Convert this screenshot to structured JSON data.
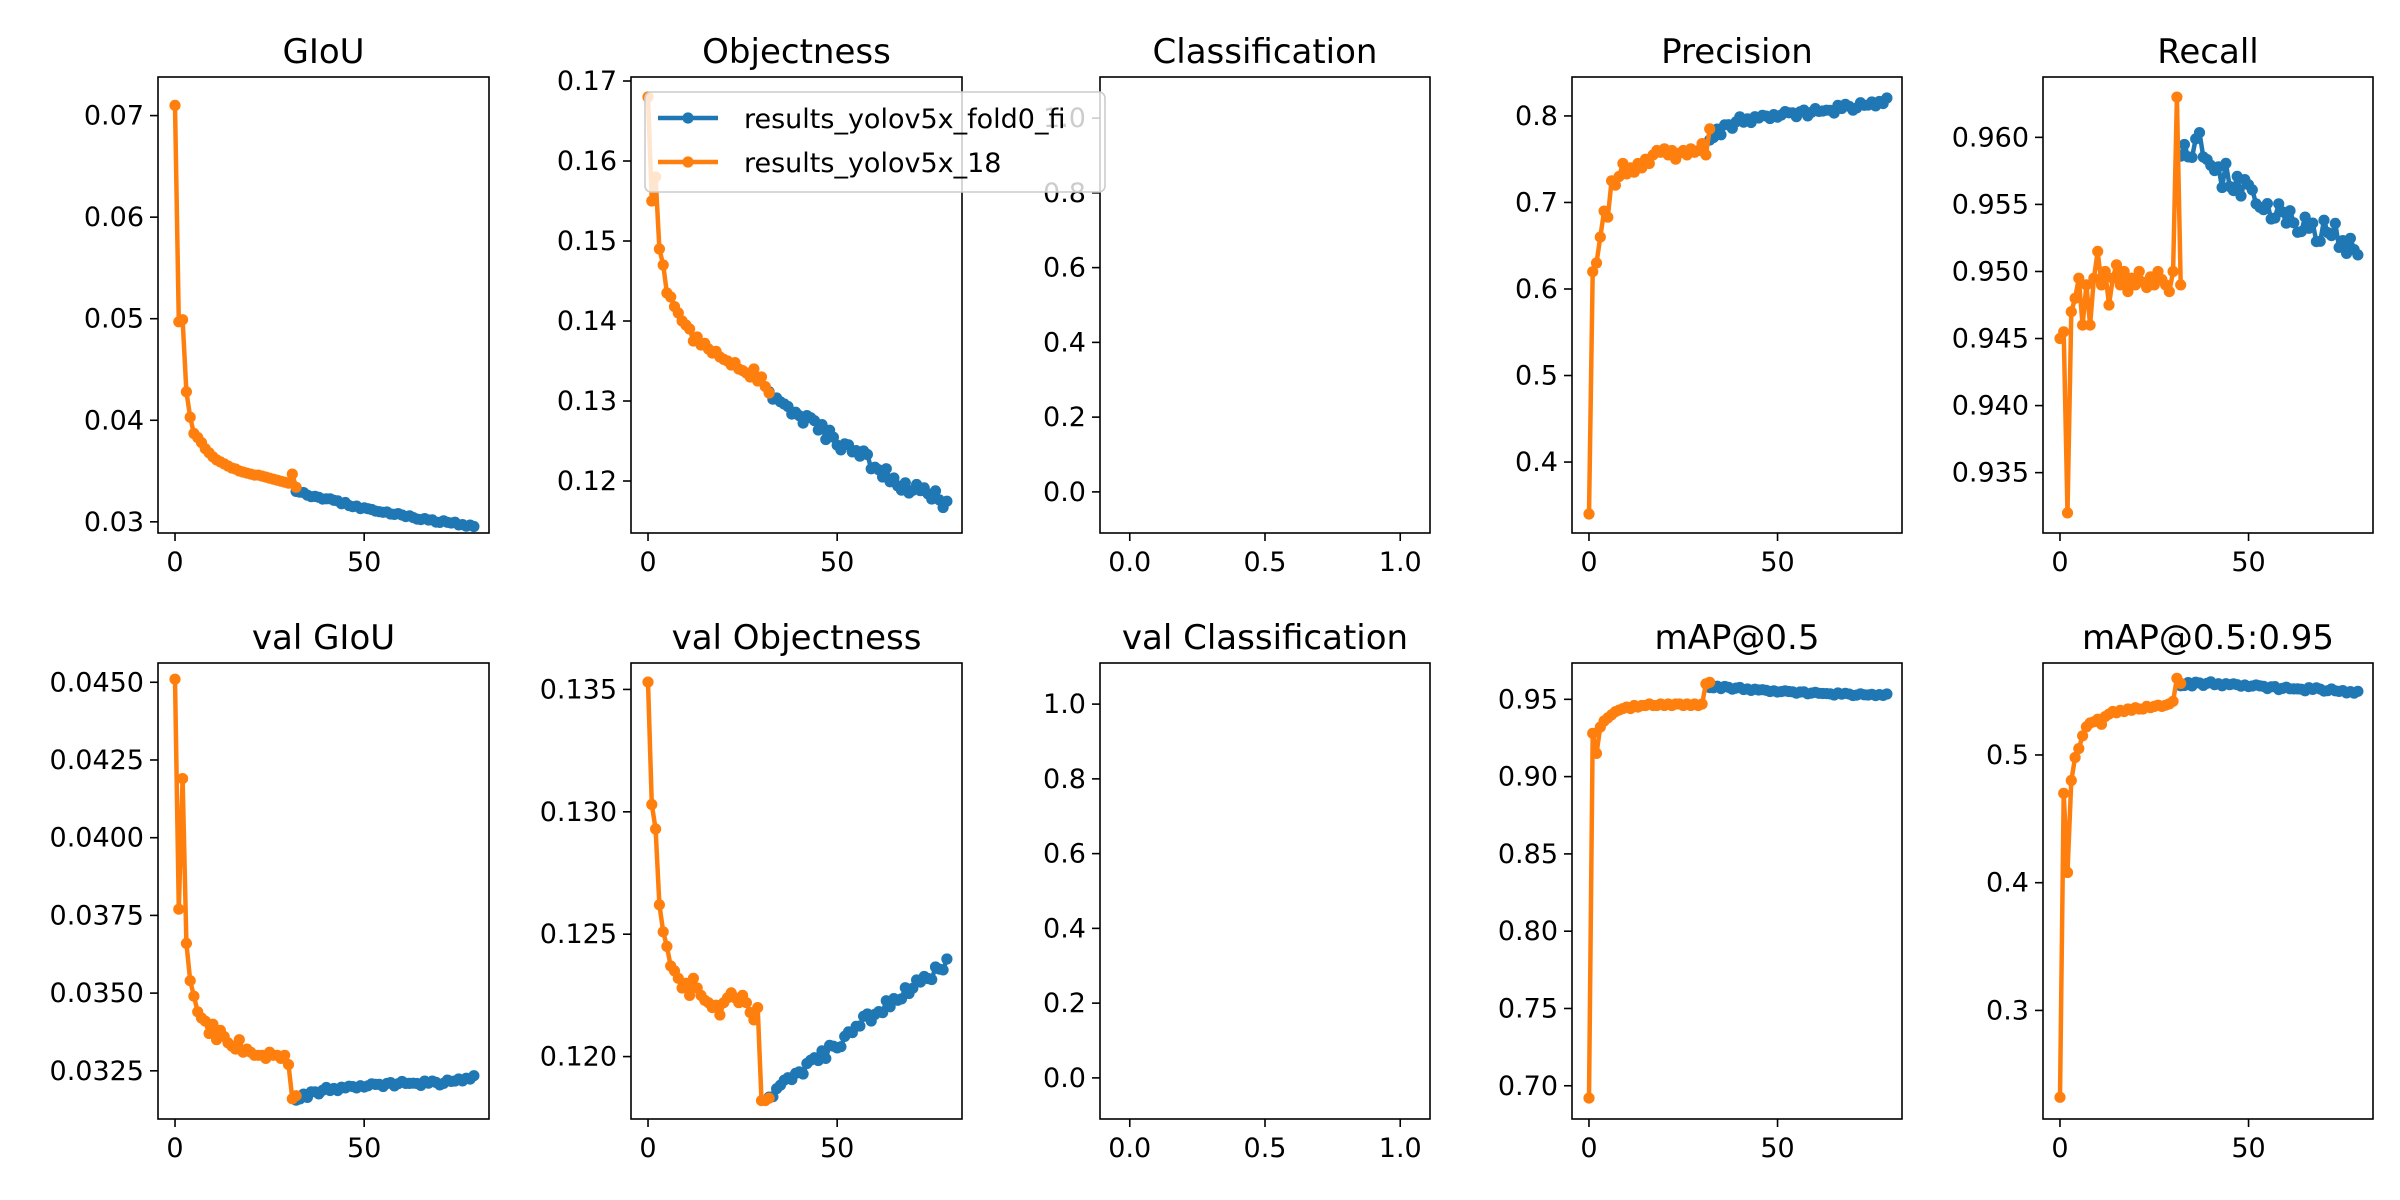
{
  "colors": {
    "series1": "#1f77b4",
    "series2": "#ff7f0e",
    "axis": "#000000",
    "legend_border": "#cccccc"
  },
  "legend": {
    "placement": "upper-right",
    "entries": [
      "results_yolov5x_fold0_fi",
      "results_yolov5x_18"
    ]
  },
  "chart_data": [
    {
      "type": "line",
      "title": "GIoU",
      "xlim": [
        -4.5,
        83
      ],
      "ylim": [
        0.0289,
        0.0738
      ],
      "xticks": [
        0,
        50
      ],
      "xticklabels": [
        "0",
        "50"
      ],
      "yticks": [
        0.03,
        0.04,
        0.05,
        0.06,
        0.07
      ],
      "yticklabels": [
        "0.03",
        "0.04",
        "0.05",
        "0.06",
        "0.07"
      ],
      "series": [
        {
          "name": "results_yolov5x_fold0_fi",
          "x_start": 32,
          "x_end": 79,
          "keys": [
            [
              32,
              0.033
            ],
            [
              50,
              0.0313
            ],
            [
              65,
              0.0303
            ],
            [
              79,
              0.0296
            ]
          ],
          "noise": 0.00015
        },
        {
          "name": "results_yolov5x_18",
          "values": [
            0.071,
            0.0497,
            0.0499,
            0.0428,
            0.0403,
            0.0387,
            0.0383,
            0.0378,
            0.0372,
            0.0368,
            0.0364,
            0.0361,
            0.0359,
            0.0357,
            0.0355,
            0.0353,
            0.0352,
            0.035,
            0.0349,
            0.0348,
            0.0347,
            0.0346,
            0.0346,
            0.0345,
            0.0344,
            0.0343,
            0.0342,
            0.0341,
            0.034,
            0.0339,
            0.0338,
            0.0347,
            0.0334
          ]
        }
      ]
    },
    {
      "type": "line",
      "title": "Objectness",
      "xlim": [
        -4.5,
        83
      ],
      "ylim": [
        0.1135,
        0.1705
      ],
      "xticks": [
        0,
        50
      ],
      "xticklabels": [
        "0",
        "50"
      ],
      "yticks": [
        0.12,
        0.13,
        0.14,
        0.15,
        0.16,
        0.17
      ],
      "yticklabels": [
        "0.12",
        "0.13",
        "0.14",
        "0.15",
        "0.16",
        "0.17"
      ],
      "series": [
        {
          "name": "results_yolov5x_fold0_fi",
          "x_start": 32,
          "x_end": 79,
          "keys": [
            [
              32,
              0.131
            ],
            [
              40,
              0.128
            ],
            [
              50,
              0.125
            ],
            [
              60,
              0.122
            ],
            [
              68,
              0.119
            ],
            [
              75,
              0.1185
            ],
            [
              79,
              0.1168
            ]
          ],
          "noise": 0.0009
        },
        {
          "name": "results_yolov5x_18",
          "values": [
            0.168,
            0.155,
            0.158,
            0.149,
            0.147,
            0.1435,
            0.143,
            0.1418,
            0.141,
            0.14,
            0.1395,
            0.139,
            0.1375,
            0.138,
            0.137,
            0.1372,
            0.1365,
            0.136,
            0.1362,
            0.1355,
            0.1352,
            0.135,
            0.1345,
            0.1348,
            0.134,
            0.1338,
            0.1335,
            0.133,
            0.134,
            0.1325,
            0.133,
            0.1318,
            0.131
          ]
        }
      ]
    },
    {
      "type": "line",
      "title": "Classification",
      "xlim": [
        -0.11,
        1.11
      ],
      "ylim": [
        -0.11,
        1.11
      ],
      "xticks": [
        0,
        0.5,
        1
      ],
      "xticklabels": [
        "0.0",
        "0.5",
        "1.0"
      ],
      "yticks": [
        0,
        0.2,
        0.4,
        0.6,
        0.8,
        1.0
      ],
      "yticklabels": [
        "0.0",
        "0.2",
        "0.4",
        "0.6",
        "0.8",
        "1.0"
      ],
      "series": []
    },
    {
      "type": "line",
      "title": "Precision",
      "xlim": [
        -4.5,
        83
      ],
      "ylim": [
        0.318,
        0.845
      ],
      "xticks": [
        0,
        50
      ],
      "xticklabels": [
        "0",
        "50"
      ],
      "yticks": [
        0.4,
        0.5,
        0.6,
        0.7,
        0.8
      ],
      "yticklabels": [
        "0.4",
        "0.5",
        "0.6",
        "0.7",
        "0.8"
      ],
      "series": [
        {
          "name": "results_yolov5x_fold0_fi",
          "x_start": 32,
          "x_end": 79,
          "keys": [
            [
              32,
              0.775
            ],
            [
              40,
              0.795
            ],
            [
              50,
              0.8
            ],
            [
              60,
              0.805
            ],
            [
              70,
              0.81
            ],
            [
              79,
              0.818
            ]
          ],
          "noise": 0.005
        },
        {
          "name": "results_yolov5x_18",
          "values": [
            0.34,
            0.62,
            0.63,
            0.66,
            0.69,
            0.683,
            0.725,
            0.72,
            0.73,
            0.745,
            0.733,
            0.74,
            0.735,
            0.745,
            0.74,
            0.75,
            0.745,
            0.755,
            0.76,
            0.758,
            0.762,
            0.755,
            0.76,
            0.75,
            0.757,
            0.76,
            0.755,
            0.762,
            0.758,
            0.76,
            0.768,
            0.755,
            0.785
          ]
        }
      ]
    },
    {
      "type": "line",
      "title": "Recall",
      "xlim": [
        -4.5,
        83
      ],
      "ylim": [
        0.9305,
        0.9645
      ],
      "xticks": [
        0,
        50
      ],
      "xticklabels": [
        "0",
        "50"
      ],
      "yticks": [
        0.935,
        0.94,
        0.945,
        0.95,
        0.955,
        0.96
      ],
      "yticklabels": [
        "0.935",
        "0.940",
        "0.945",
        "0.950",
        "0.955",
        "0.960"
      ],
      "series": [
        {
          "name": "results_yolov5x_fold0_fi",
          "x_start": 32,
          "x_end": 79,
          "keys": [
            [
              32,
              0.9585
            ],
            [
              37,
              0.9605
            ],
            [
              40,
              0.957
            ],
            [
              45,
              0.957
            ],
            [
              50,
              0.956
            ],
            [
              55,
              0.9545
            ],
            [
              60,
              0.954
            ],
            [
              65,
              0.9535
            ],
            [
              70,
              0.953
            ],
            [
              75,
              0.9525
            ],
            [
              79,
              0.952
            ]
          ],
          "noise": 0.0012
        },
        {
          "name": "results_yolov5x_18",
          "values": [
            0.945,
            0.9455,
            0.932,
            0.947,
            0.948,
            0.9495,
            0.946,
            0.949,
            0.946,
            0.9495,
            0.9515,
            0.949,
            0.95,
            0.9475,
            0.9495,
            0.9505,
            0.949,
            0.95,
            0.9485,
            0.9495,
            0.949,
            0.95,
            0.9492,
            0.9488,
            0.9496,
            0.949,
            0.95,
            0.9494,
            0.949,
            0.9485,
            0.95,
            0.963,
            0.949
          ]
        }
      ]
    },
    {
      "type": "line",
      "title": "val GIoU",
      "xlim": [
        -4.5,
        83
      ],
      "ylim": [
        0.03095,
        0.04562
      ],
      "xticks": [
        0,
        50
      ],
      "xticklabels": [
        "0",
        "50"
      ],
      "yticks": [
        0.0325,
        0.035,
        0.0375,
        0.04,
        0.0425,
        0.045
      ],
      "yticklabels": [
        "0.0325",
        "0.0350",
        "0.0375",
        "0.0400",
        "0.0425",
        "0.0450"
      ],
      "series": [
        {
          "name": "results_yolov5x_fold0_fi",
          "x_start": 32,
          "x_end": 79,
          "keys": [
            [
              32,
              0.0316
            ],
            [
              40,
              0.0319
            ],
            [
              50,
              0.032
            ],
            [
              60,
              0.0321
            ],
            [
              70,
              0.0321
            ],
            [
              79,
              0.0323
            ]
          ],
          "noise": 8e-05
        },
        {
          "name": "results_yolov5x_18",
          "values": [
            0.0451,
            0.0377,
            0.0419,
            0.0366,
            0.0354,
            0.0349,
            0.0344,
            0.0342,
            0.0341,
            0.0337,
            0.034,
            0.0335,
            0.0338,
            0.0336,
            0.0334,
            0.0333,
            0.0332,
            0.0335,
            0.0331,
            0.0332,
            0.0331,
            0.033,
            0.033,
            0.033,
            0.0329,
            0.0331,
            0.033,
            0.033,
            0.0329,
            0.033,
            0.0327,
            0.0316,
            0.0317
          ]
        }
      ]
    },
    {
      "type": "line",
      "title": "val Objectness",
      "xlim": [
        -4.5,
        83
      ],
      "ylim": [
        0.11745,
        0.13608
      ],
      "xticks": [
        0,
        50
      ],
      "xticklabels": [
        "0",
        "50"
      ],
      "yticks": [
        0.12,
        0.125,
        0.13,
        0.135
      ],
      "yticklabels": [
        "0.120",
        "0.125",
        "0.130",
        "0.135"
      ],
      "series": [
        {
          "name": "results_yolov5x_fold0_fi",
          "x_start": 32,
          "x_end": 79,
          "keys": [
            [
              32,
              0.1183
            ],
            [
              36,
              0.119
            ],
            [
              42,
              0.1195
            ],
            [
              50,
              0.1205
            ],
            [
              60,
              0.1218
            ],
            [
              70,
              0.1228
            ],
            [
              79,
              0.1238
            ]
          ],
          "noise": 0.00025
        },
        {
          "name": "results_yolov5x_18",
          "values": [
            0.1353,
            0.1303,
            0.1293,
            0.1262,
            0.1251,
            0.1245,
            0.1237,
            0.1235,
            0.1232,
            0.1228,
            0.123,
            0.1225,
            0.1232,
            0.1228,
            0.1225,
            0.1223,
            0.1222,
            0.122,
            0.1221,
            0.1217,
            0.1222,
            0.1224,
            0.1226,
            0.1224,
            0.1222,
            0.1225,
            0.1222,
            0.1218,
            0.1215,
            0.122,
            0.1182,
            0.1182,
            0.1183
          ]
        }
      ]
    },
    {
      "type": "line",
      "title": "val Classification",
      "xlim": [
        -0.11,
        1.11
      ],
      "ylim": [
        -0.11,
        1.11
      ],
      "xticks": [
        0,
        0.5,
        1
      ],
      "xticklabels": [
        "0.0",
        "0.5",
        "1.0"
      ],
      "yticks": [
        0,
        0.2,
        0.4,
        0.6,
        0.8,
        1.0
      ],
      "yticklabels": [
        "0.0",
        "0.2",
        "0.4",
        "0.6",
        "0.8",
        "1.0"
      ],
      "series": []
    },
    {
      "type": "line",
      "title": "mAP@0.5",
      "xlim": [
        -4.5,
        83
      ],
      "ylim": [
        0.6785,
        0.9735
      ],
      "xticks": [
        0,
        50
      ],
      "xticklabels": [
        "0",
        "50"
      ],
      "yticks": [
        0.7,
        0.75,
        0.8,
        0.85,
        0.9,
        0.95
      ],
      "yticklabels": [
        "0.70",
        "0.75",
        "0.80",
        "0.85",
        "0.90",
        "0.95"
      ],
      "series": [
        {
          "name": "results_yolov5x_fold0_fi",
          "x_start": 32,
          "x_end": 79,
          "keys": [
            [
              32,
              0.958
            ],
            [
              40,
              0.957
            ],
            [
              50,
              0.955
            ],
            [
              60,
              0.954
            ],
            [
              70,
              0.953
            ],
            [
              79,
              0.953
            ]
          ],
          "noise": 0.0008
        },
        {
          "name": "results_yolov5x_18",
          "values": [
            0.692,
            0.928,
            0.915,
            0.932,
            0.936,
            0.938,
            0.94,
            0.942,
            0.943,
            0.944,
            0.945,
            0.944,
            0.946,
            0.945,
            0.946,
            0.946,
            0.947,
            0.946,
            0.946,
            0.947,
            0.946,
            0.947,
            0.946,
            0.947,
            0.947,
            0.946,
            0.947,
            0.946,
            0.947,
            0.946,
            0.947,
            0.96,
            0.961
          ]
        }
      ]
    },
    {
      "type": "line",
      "title": "mAP@0.5:0.95",
      "xlim": [
        -4.5,
        83
      ],
      "ylim": [
        0.215,
        0.572
      ],
      "xticks": [
        0,
        50
      ],
      "xticklabels": [
        "0",
        "50"
      ],
      "yticks": [
        0.3,
        0.4,
        0.5
      ],
      "yticklabels": [
        "0.3",
        "0.4",
        "0.5"
      ],
      "series": [
        {
          "name": "results_yolov5x_fold0_fi",
          "x_start": 32,
          "x_end": 79,
          "keys": [
            [
              32,
              0.555
            ],
            [
              40,
              0.556
            ],
            [
              50,
              0.554
            ],
            [
              60,
              0.552
            ],
            [
              70,
              0.551
            ],
            [
              79,
              0.549
            ]
          ],
          "noise": 0.0015
        },
        {
          "name": "results_yolov5x_18",
          "values": [
            0.232,
            0.47,
            0.408,
            0.48,
            0.498,
            0.505,
            0.515,
            0.522,
            0.525,
            0.526,
            0.528,
            0.524,
            0.53,
            0.532,
            0.534,
            0.533,
            0.535,
            0.534,
            0.536,
            0.535,
            0.537,
            0.536,
            0.536,
            0.538,
            0.537,
            0.538,
            0.539,
            0.538,
            0.539,
            0.54,
            0.542,
            0.56,
            0.556
          ]
        }
      ]
    }
  ]
}
